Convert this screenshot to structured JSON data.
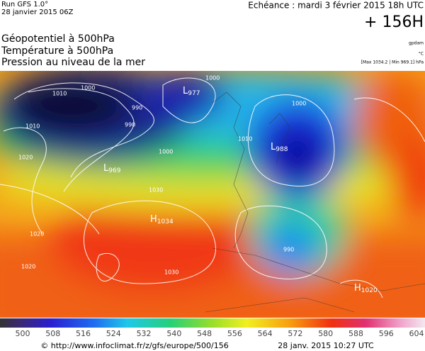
{
  "header": {
    "run": "Run GFS 1.0°",
    "init": "28 janvier 2015 06Z",
    "echeance": "Echéance : mardi 3 février 2015 18h UTC",
    "lead": "+ 156H"
  },
  "titles": [
    "Géopotentiel à 500hPa",
    "Température à 500hPa",
    "Pression au niveau de la mer"
  ],
  "units": {
    "geopotential": "gpdam",
    "temperature": "°C",
    "range": "[Max 1034.2 | Min 969.1] hPa"
  },
  "pressure_centers": [
    {
      "kind": "L",
      "value": "977"
    },
    {
      "kind": "L",
      "value": "988"
    },
    {
      "kind": "L",
      "value": "969"
    },
    {
      "kind": "H",
      "value": "1034"
    },
    {
      "kind": "H",
      "value": "1020"
    }
  ],
  "isobar_labels": [
    "1010",
    "1000",
    "990",
    "990",
    "1000",
    "1010",
    "1020",
    "1000",
    "1010",
    "1030",
    "1030",
    "1020",
    "1000",
    "990",
    "1020"
  ],
  "colorbar": {
    "labels": [
      500,
      508,
      516,
      524,
      532,
      540,
      548,
      556,
      564,
      572,
      580,
      588,
      596,
      604
    ]
  },
  "footer": {
    "source": "© http://www.infoclimat.fr/z/gfs/europe/500/156",
    "date": "28 janv. 2015 10:27 UTC"
  }
}
